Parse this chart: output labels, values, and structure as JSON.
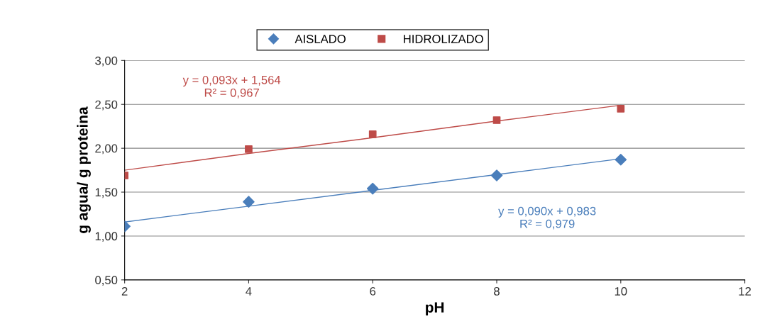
{
  "chart_data": {
    "type": "scatter",
    "xlabel": "pH",
    "ylabel": "g agua/ g proteina",
    "x": [
      2,
      4,
      6,
      8,
      10
    ],
    "series": [
      {
        "name": "AISLADO",
        "color": "#4a7ebb",
        "marker": "diamond",
        "values": [
          1.11,
          1.39,
          1.54,
          1.69,
          1.87
        ]
      },
      {
        "name": "HIDROLIZADO",
        "color": "#be4b48",
        "marker": "square",
        "values": [
          1.69,
          1.99,
          2.16,
          2.32,
          2.45
        ]
      },
      {
        "type": "line",
        "color": "#4a7ebb",
        "marker": "none",
        "values": [
          1.16,
          1.34,
          1.52,
          1.7,
          1.88
        ]
      },
      {
        "type": "line",
        "color": "#be4b48",
        "marker": "none",
        "values": [
          1.75,
          1.94,
          2.12,
          2.31,
          2.49
        ]
      }
    ],
    "xlim": [
      2,
      12
    ],
    "xticks": [
      2,
      4,
      6,
      8,
      10,
      12
    ],
    "ylim": [
      0.5,
      3.0
    ],
    "yticks": [
      {
        "value": 0.5,
        "label": "0,50"
      },
      {
        "value": 1.0,
        "label": "1,00"
      },
      {
        "value": 1.5,
        "label": "1,50"
      },
      {
        "value": 2.0,
        "label": "2,00"
      },
      {
        "value": 2.5,
        "label": "2,50"
      },
      {
        "value": 3.0,
        "label": "3,00"
      }
    ],
    "grid": "y",
    "legend": "top",
    "annotations": [
      "y = 0,093x + 1,564\nR² = 0,967",
      "y = 0,090x + 0,983\nR² = 0,979"
    ]
  }
}
